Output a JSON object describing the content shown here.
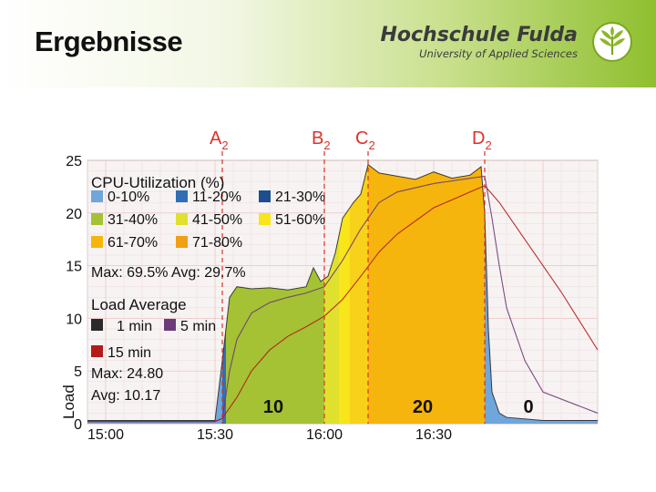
{
  "header": {
    "title": "Ergebnisse",
    "brand_name": "Hochschule Fulda",
    "brand_subtitle": "University of Applied Sciences"
  },
  "markers": [
    {
      "label": "A",
      "sub": "2",
      "time": "15:32"
    },
    {
      "label": "B",
      "sub": "2",
      "time": "16:00"
    },
    {
      "label": "C",
      "sub": "2",
      "time": "16:12"
    },
    {
      "label": "D",
      "sub": "2",
      "time": "16:44"
    }
  ],
  "phase_labels": [
    {
      "text": "10",
      "time": "15:46"
    },
    {
      "text": "20",
      "time": "16:27"
    },
    {
      "text": "0",
      "time": "16:56"
    }
  ],
  "chart_data": {
    "type": "area",
    "xlabel": "",
    "ylabel": "Load",
    "ylim": [
      0,
      25
    ],
    "y_ticks": [
      "0",
      "5",
      "10",
      "15",
      "20",
      "25"
    ],
    "x_ticks": [
      "15:00",
      "15:30",
      "16:00",
      "16:30"
    ],
    "x_tick_times": [
      "15:00",
      "15:30",
      "16:00",
      "16:30"
    ],
    "x_range": [
      "14:55",
      "17:15"
    ],
    "grid": true,
    "legend": {
      "title": "CPU-Utilization (%)",
      "cpu_items": [
        {
          "label": "0-10%",
          "color": "#6fa6dc"
        },
        {
          "label": "11-20%",
          "color": "#2f6fb6"
        },
        {
          "label": "21-30%",
          "color": "#1b4f8f"
        },
        {
          "label": "31-40%",
          "color": "#a4c233"
        },
        {
          "label": "41-50%",
          "color": "#dfe12e"
        },
        {
          "label": "51-60%",
          "color": "#f8e51a"
        },
        {
          "label": "61-70%",
          "color": "#f5b50c"
        },
        {
          "label": "71-80%",
          "color": "#f0a014"
        }
      ],
      "cpu_stats": "Max: 69.5% Avg: 29.7%",
      "load_title": "Load Average",
      "load_items": [
        {
          "label": "1 min",
          "color": "#2a2a2a"
        },
        {
          "label": "5 min",
          "color": "#6b3a7a"
        },
        {
          "label": "15 min",
          "color": "#b51a1a"
        }
      ],
      "load_max": "Max: 24.80",
      "load_avg": "Avg: 10.17"
    },
    "cpu_bands": [
      {
        "from": "14:55",
        "to": "15:32",
        "color": "#6fa6dc"
      },
      {
        "from": "15:32",
        "to": "15:33",
        "color": "#2f6fb6"
      },
      {
        "from": "15:33",
        "to": "15:56",
        "color": "#a4c233"
      },
      {
        "from": "15:56",
        "to": "16:00",
        "color": "#a4c233"
      },
      {
        "from": "16:00",
        "to": "16:04",
        "color": "#dfe12e"
      },
      {
        "from": "16:04",
        "to": "16:07",
        "color": "#f8e51a"
      },
      {
        "from": "16:07",
        "to": "16:12",
        "color": "#f8d11a"
      },
      {
        "from": "16:12",
        "to": "16:44",
        "color": "#f5b50c"
      },
      {
        "from": "16:44",
        "to": "17:15",
        "color": "#6fa6dc"
      }
    ],
    "series": [
      {
        "name": "1 min",
        "color": "#2a2a2a",
        "x": [
          "14:55",
          "15:30",
          "15:32",
          "15:34",
          "15:36",
          "15:40",
          "15:45",
          "15:50",
          "15:55",
          "15:57",
          "15:59",
          "16:01",
          "16:03",
          "16:05",
          "16:07",
          "16:08",
          "16:10",
          "16:12",
          "16:15",
          "16:20",
          "16:25",
          "16:30",
          "16:35",
          "16:40",
          "16:43",
          "16:44",
          "16:45",
          "16:46",
          "16:48",
          "16:50",
          "17:00",
          "17:15"
        ],
        "y": [
          0.3,
          0.3,
          6,
          12,
          13,
          12.8,
          12.9,
          12.7,
          13.0,
          14.8,
          13.5,
          14.0,
          16.2,
          19.5,
          20.5,
          21.0,
          21.8,
          24.6,
          23.8,
          23.5,
          23.2,
          23.9,
          23.3,
          23.6,
          24.4,
          20,
          9,
          3,
          1.0,
          0.6,
          0.3,
          0.3
        ]
      },
      {
        "name": "5 min",
        "color": "#6b3a7a",
        "x": [
          "14:55",
          "15:30",
          "15:32",
          "15:34",
          "15:36",
          "15:40",
          "15:45",
          "15:50",
          "15:55",
          "16:00",
          "16:05",
          "16:10",
          "16:15",
          "16:20",
          "16:30",
          "16:40",
          "16:44",
          "16:46",
          "16:48",
          "16:50",
          "16:55",
          "17:00",
          "17:15"
        ],
        "y": [
          0.2,
          0.2,
          0.5,
          5,
          8,
          10.5,
          11.5,
          12,
          12.4,
          13.0,
          15.5,
          18.5,
          21,
          22,
          22.8,
          23.3,
          23.5,
          19.5,
          15,
          11,
          6,
          3,
          1
        ]
      },
      {
        "name": "15 min",
        "color": "#b51a1a",
        "x": [
          "14:55",
          "15:30",
          "15:32",
          "15:36",
          "15:40",
          "15:45",
          "15:50",
          "15:55",
          "16:00",
          "16:05",
          "16:10",
          "16:15",
          "16:20",
          "16:30",
          "16:40",
          "16:44",
          "16:48",
          "16:55",
          "17:05",
          "17:15"
        ],
        "y": [
          0.2,
          0.2,
          0.5,
          2.5,
          5,
          7,
          8.3,
          9.2,
          10.2,
          11.8,
          14,
          16.3,
          18,
          20.5,
          22,
          22.6,
          21,
          17.5,
          12.5,
          7
        ]
      }
    ]
  }
}
